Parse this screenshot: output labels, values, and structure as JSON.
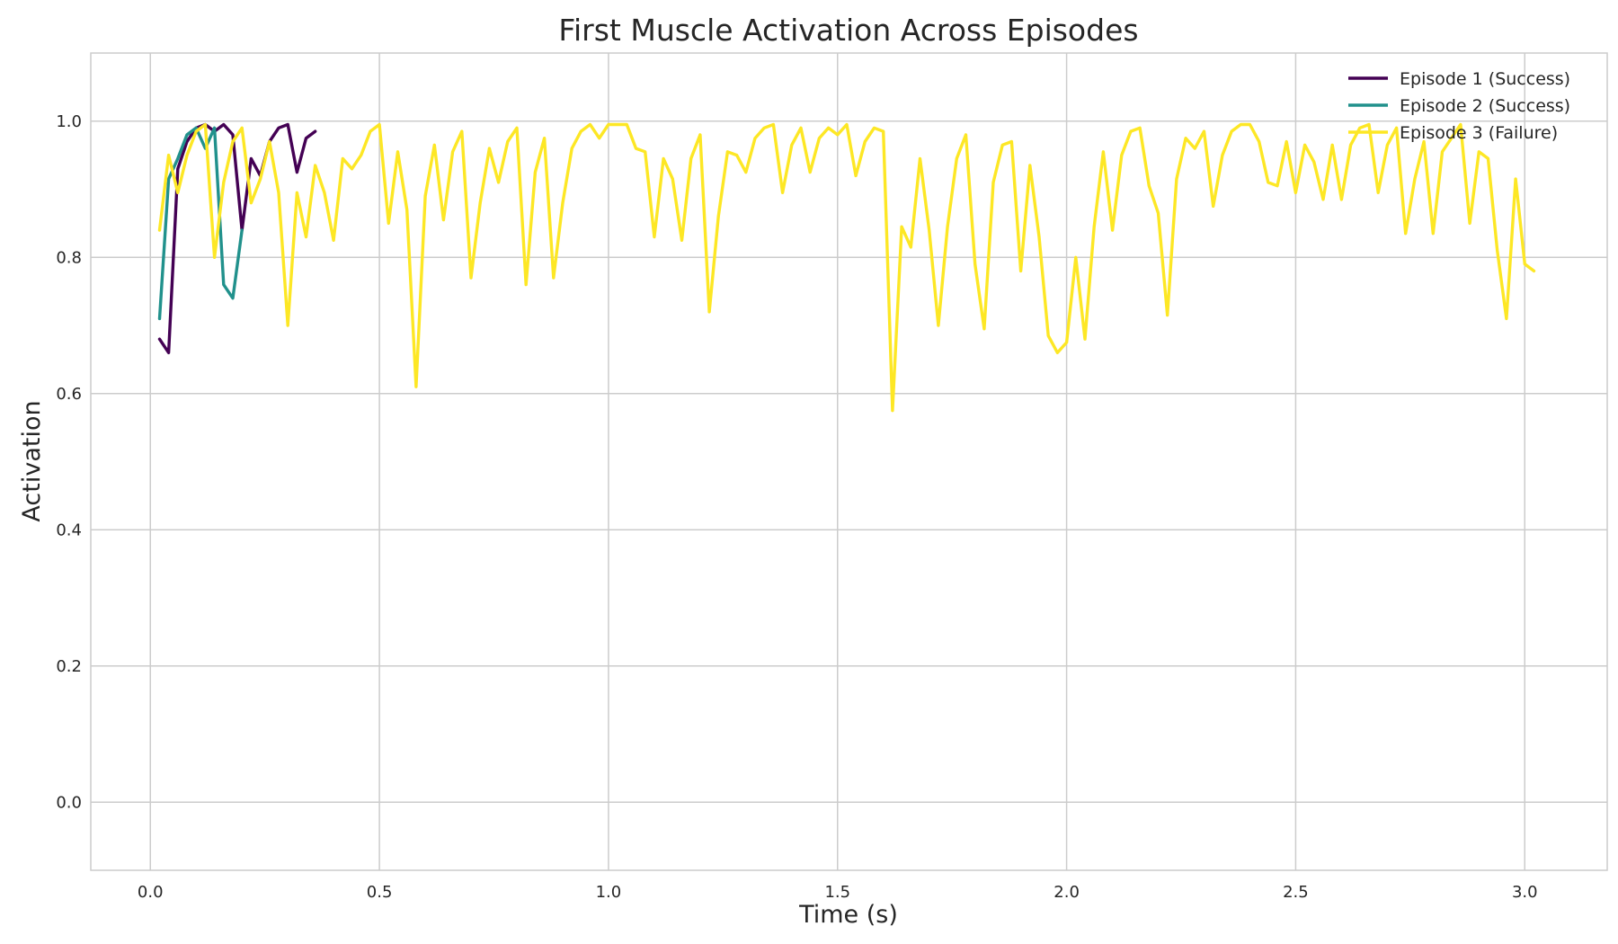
{
  "chart_data": {
    "type": "line",
    "title": "First Muscle Activation Across Episodes",
    "xlabel": "Time (s)",
    "ylabel": "Activation",
    "xlim": [
      -0.13,
      3.18
    ],
    "ylim": [
      -0.1,
      1.1
    ],
    "xticks": [
      0.0,
      0.5,
      1.0,
      1.5,
      2.0,
      2.5,
      3.0
    ],
    "xtick_labels": [
      "0.0",
      "0.5",
      "1.0",
      "1.5",
      "2.0",
      "2.5",
      "3.0"
    ],
    "yticks": [
      0.0,
      0.2,
      0.4,
      0.6,
      0.8,
      1.0
    ],
    "ytick_labels": [
      "0.0",
      "0.2",
      "0.4",
      "0.6",
      "0.8",
      "1.0"
    ],
    "grid": true,
    "legend_position": "top-right",
    "series": [
      {
        "name": "Episode 1 (Success)",
        "color": "#440154",
        "x": [
          0.02,
          0.04,
          0.06,
          0.08,
          0.1,
          0.12,
          0.14,
          0.16,
          0.18,
          0.2,
          0.22,
          0.24,
          0.26,
          0.28,
          0.3,
          0.32,
          0.34,
          0.36
        ],
        "y": [
          0.68,
          0.66,
          0.93,
          0.97,
          0.99,
          0.995,
          0.985,
          0.995,
          0.98,
          0.84,
          0.945,
          0.92,
          0.97,
          0.99,
          0.995,
          0.925,
          0.975,
          0.985
        ]
      },
      {
        "name": "Episode 2 (Success)",
        "color": "#21918c",
        "x": [
          0.02,
          0.04,
          0.06,
          0.08,
          0.1,
          0.12,
          0.14,
          0.16,
          0.18,
          0.2
        ],
        "y": [
          0.71,
          0.915,
          0.945,
          0.98,
          0.99,
          0.96,
          0.99,
          0.76,
          0.74,
          0.84
        ]
      },
      {
        "name": "Episode 3 (Failure)",
        "color": "#fde725",
        "x": [
          0.02,
          0.04,
          0.06,
          0.08,
          0.1,
          0.12,
          0.14,
          0.16,
          0.18,
          0.2,
          0.22,
          0.24,
          0.26,
          0.28,
          0.3,
          0.32,
          0.34,
          0.36,
          0.38,
          0.4,
          0.42,
          0.44,
          0.46,
          0.48,
          0.5,
          0.52,
          0.54,
          0.56,
          0.58,
          0.6,
          0.62,
          0.64,
          0.66,
          0.68,
          0.7,
          0.72,
          0.74,
          0.76,
          0.78,
          0.8,
          0.82,
          0.84,
          0.86,
          0.88,
          0.9,
          0.92,
          0.94,
          0.96,
          0.98,
          1.0,
          1.02,
          1.04,
          1.06,
          1.08,
          1.1,
          1.12,
          1.14,
          1.16,
          1.18,
          1.2,
          1.22,
          1.24,
          1.26,
          1.28,
          1.3,
          1.32,
          1.34,
          1.36,
          1.38,
          1.4,
          1.42,
          1.44,
          1.46,
          1.48,
          1.5,
          1.52,
          1.54,
          1.56,
          1.58,
          1.6,
          1.62,
          1.64,
          1.66,
          1.68,
          1.7,
          1.72,
          1.74,
          1.76,
          1.78,
          1.8,
          1.82,
          1.84,
          1.86,
          1.88,
          1.9,
          1.92,
          1.94,
          1.96,
          1.98,
          2.0,
          2.02,
          2.04,
          2.06,
          2.08,
          2.1,
          2.12,
          2.14,
          2.16,
          2.18,
          2.2,
          2.22,
          2.24,
          2.26,
          2.28,
          2.3,
          2.32,
          2.34,
          2.36,
          2.38,
          2.4,
          2.42,
          2.44,
          2.46,
          2.48,
          2.5,
          2.52,
          2.54,
          2.56,
          2.58,
          2.6,
          2.62,
          2.64,
          2.66,
          2.68,
          2.7,
          2.72,
          2.74,
          2.76,
          2.78,
          2.8,
          2.82,
          2.84,
          2.86,
          2.88,
          2.9,
          2.92,
          2.94,
          2.96,
          2.98,
          3.0,
          3.02
        ],
        "y": [
          0.84,
          0.95,
          0.895,
          0.95,
          0.985,
          0.995,
          0.8,
          0.91,
          0.97,
          0.99,
          0.88,
          0.915,
          0.97,
          0.895,
          0.7,
          0.895,
          0.83,
          0.935,
          0.895,
          0.825,
          0.945,
          0.93,
          0.95,
          0.985,
          0.995,
          0.85,
          0.955,
          0.87,
          0.61,
          0.89,
          0.965,
          0.855,
          0.955,
          0.985,
          0.77,
          0.88,
          0.96,
          0.91,
          0.97,
          0.99,
          0.76,
          0.925,
          0.975,
          0.77,
          0.88,
          0.96,
          0.985,
          0.995,
          0.975,
          0.995,
          0.995,
          0.995,
          0.96,
          0.955,
          0.83,
          0.945,
          0.915,
          0.825,
          0.945,
          0.98,
          0.72,
          0.86,
          0.955,
          0.95,
          0.925,
          0.975,
          0.99,
          0.995,
          0.895,
          0.965,
          0.99,
          0.925,
          0.975,
          0.99,
          0.98,
          0.995,
          0.92,
          0.97,
          0.99,
          0.985,
          0.575,
          0.845,
          0.815,
          0.945,
          0.84,
          0.7,
          0.845,
          0.945,
          0.98,
          0.79,
          0.695,
          0.91,
          0.965,
          0.97,
          0.78,
          0.935,
          0.83,
          0.685,
          0.66,
          0.675,
          0.8,
          0.68,
          0.845,
          0.955,
          0.84,
          0.95,
          0.985,
          0.99,
          0.905,
          0.865,
          0.715,
          0.915,
          0.975,
          0.96,
          0.985,
          0.875,
          0.95,
          0.985,
          0.995,
          0.995,
          0.97,
          0.91,
          0.905,
          0.97,
          0.895,
          0.965,
          0.94,
          0.885,
          0.965,
          0.885,
          0.965,
          0.99,
          0.995,
          0.895,
          0.965,
          0.99,
          0.835,
          0.915,
          0.97,
          0.835,
          0.955,
          0.975,
          0.995,
          0.85,
          0.955,
          0.945,
          0.81,
          0.71,
          0.915,
          0.79,
          0.78
        ]
      }
    ]
  }
}
